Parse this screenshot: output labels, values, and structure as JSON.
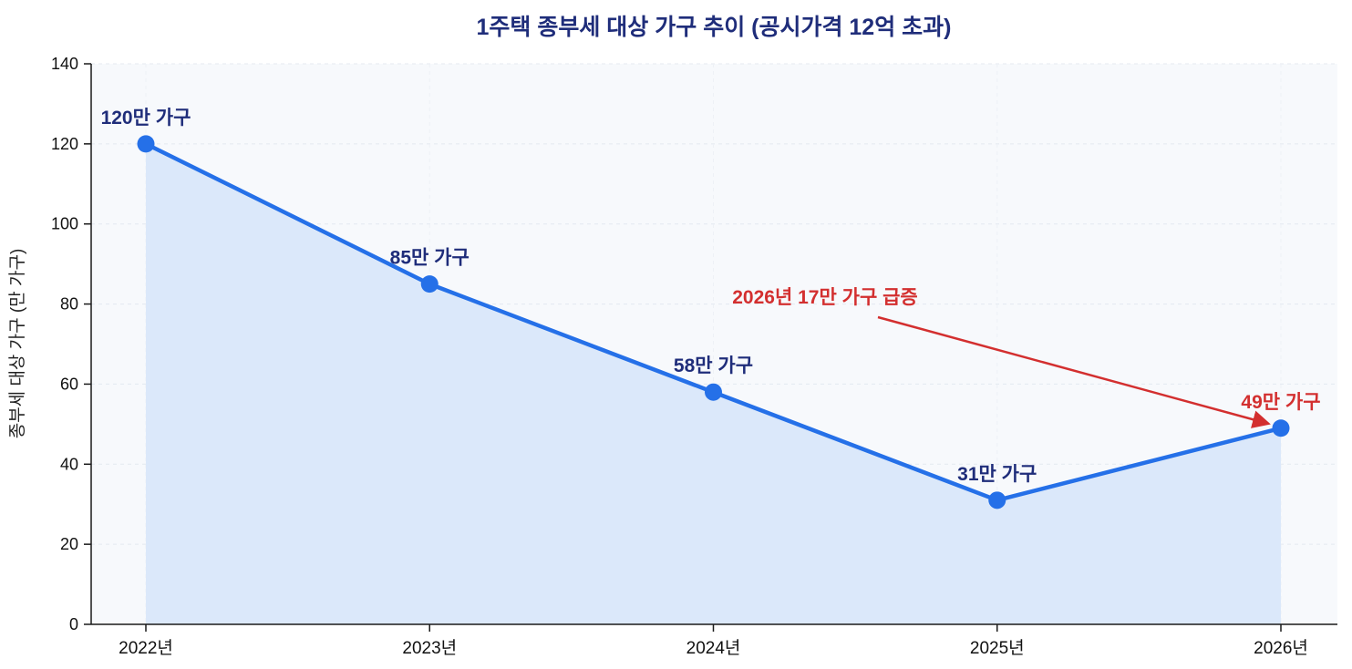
{
  "chart_data": {
    "type": "line",
    "title": "1주택 종부세 대상 가구 추이 (공시가격 12억 초과)",
    "ylabel": "종부세 대상 가구 (만 가구)",
    "categories": [
      "2022년",
      "2023년",
      "2024년",
      "2025년",
      "2026년"
    ],
    "values": [
      120,
      85,
      58,
      31,
      49
    ],
    "point_labels": [
      "120만 가구",
      "85만 가구",
      "58만 가구",
      "31만 가구",
      "49만 가구"
    ],
    "highlight_index": 4,
    "ylim": [
      0,
      140
    ],
    "yticks": [
      0,
      20,
      40,
      60,
      80,
      100,
      120,
      140
    ],
    "grid": true,
    "legend": "none",
    "annotation": {
      "text": "2026년 17만 가구 급증",
      "target_category": "2026년",
      "target_value": 49
    },
    "colors": {
      "line": "#2570e8",
      "marker": "#2570e8",
      "area": "#dbe8fa",
      "plot_bg": "#f7f9fc",
      "grid": "#e4e9f0",
      "label": "#1f2d7a",
      "title": "#1f2d7a",
      "highlight": "#d32f2f",
      "axis": "#1a1a1a",
      "tick_text": "#111111"
    }
  }
}
